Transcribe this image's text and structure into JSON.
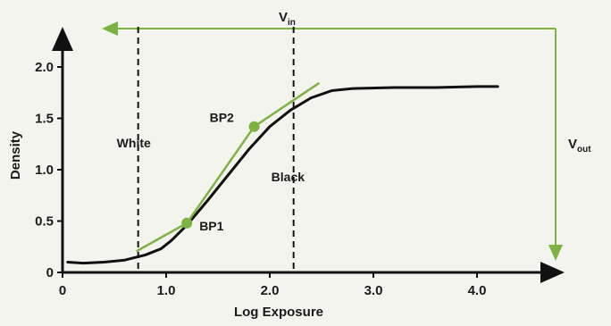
{
  "chart_data": {
    "type": "line",
    "title": "",
    "xlabel": "Log Exposure",
    "ylabel": "Density",
    "xlim": [
      0,
      5
    ],
    "ylim": [
      0,
      2.4
    ],
    "xticks": [
      "0",
      "1.0",
      "2.0",
      "3.0",
      "4.0"
    ],
    "xtick_values": [
      0,
      1,
      2,
      3,
      4
    ],
    "yticks": [
      "0",
      "0.5",
      "1.0",
      "1.5",
      "2.0"
    ],
    "ytick_values": [
      0,
      0.5,
      1,
      1.5,
      2
    ],
    "grid": false,
    "series": [
      {
        "color": "#111111",
        "x": [
          0.05,
          0.2,
          0.4,
          0.6,
          0.8,
          0.95,
          1.05,
          1.2,
          1.4,
          1.6,
          1.8,
          2.0,
          2.2,
          2.4,
          2.6,
          2.8,
          3.2,
          3.6,
          4.0,
          4.2
        ],
        "y": [
          0.1,
          0.09,
          0.1,
          0.12,
          0.17,
          0.23,
          0.31,
          0.46,
          0.7,
          0.95,
          1.2,
          1.42,
          1.58,
          1.7,
          1.77,
          1.79,
          1.8,
          1.8,
          1.81,
          1.81
        ]
      },
      {
        "color": "#7cb342",
        "x": [
          0.72,
          1.2
        ],
        "y": [
          0.21,
          0.48
        ]
      },
      {
        "color": "#7cb342",
        "x": [
          1.2,
          1.85
        ],
        "y": [
          0.48,
          1.42
        ]
      },
      {
        "color": "#7cb342",
        "x": [
          1.85,
          2.47
        ],
        "y": [
          1.42,
          1.84
        ]
      }
    ],
    "breakpoints": [
      {
        "label": "BP1",
        "x": 1.2,
        "y": 0.48
      },
      {
        "label": "BP2",
        "x": 1.85,
        "y": 1.42
      }
    ],
    "vertical_lines": [
      {
        "label": "White",
        "x": 0.73
      },
      {
        "label": "Black",
        "x": 2.23
      }
    ],
    "vin_label": {
      "main": "V",
      "sub": "in"
    },
    "vout_label": {
      "main": "V",
      "sub": "out"
    },
    "colors": {
      "curve": "#111111",
      "green": "#7cb342",
      "axis": "#111111",
      "background": "#f4f4ef"
    }
  }
}
